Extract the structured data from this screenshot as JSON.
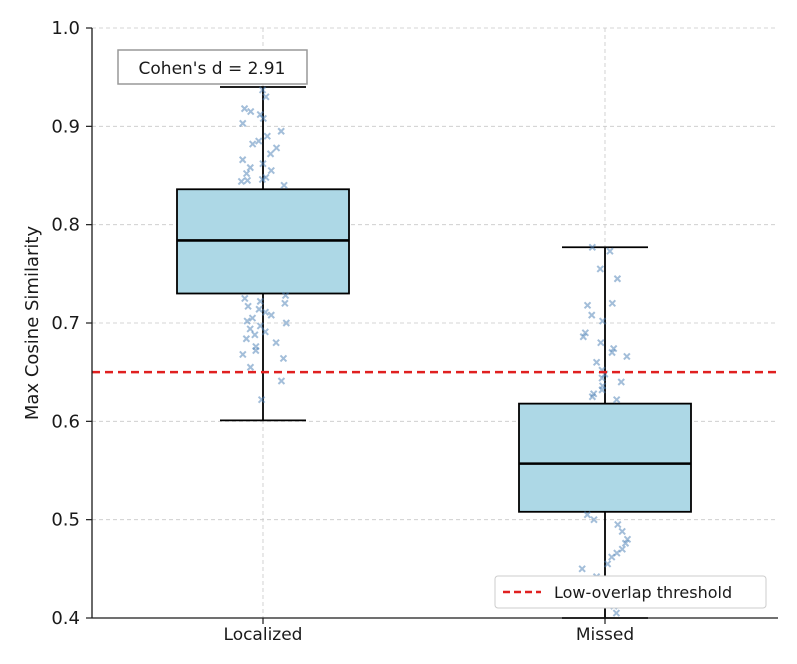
{
  "chart_data": {
    "type": "box",
    "title": "",
    "xlabel": "",
    "ylabel": "Max Cosine Similarity",
    "ylim": [
      0.4,
      1.0
    ],
    "yticks": [
      "0.4",
      "0.5",
      "0.6",
      "0.7",
      "0.8",
      "0.9",
      "1.0"
    ],
    "grid": true,
    "categories": [
      "Localized",
      "Missed"
    ],
    "boxes": [
      {
        "name": "Localized",
        "whisker_low": 0.601,
        "q1": 0.73,
        "median": 0.784,
        "q3": 0.836,
        "whisker_high": 0.94
      },
      {
        "name": "Missed",
        "whisker_low": 0.4,
        "q1": 0.508,
        "median": 0.557,
        "q3": 0.618,
        "whisker_high": 0.777
      }
    ],
    "jitter_points": {
      "Localized": [
        0.937,
        0.93,
        0.918,
        0.915,
        0.912,
        0.908,
        0.903,
        0.895,
        0.89,
        0.885,
        0.882,
        0.878,
        0.872,
        0.866,
        0.862,
        0.858,
        0.855,
        0.852,
        0.848,
        0.846,
        0.845,
        0.844,
        0.84,
        0.728,
        0.725,
        0.722,
        0.72,
        0.717,
        0.714,
        0.711,
        0.708,
        0.705,
        0.702,
        0.7,
        0.697,
        0.694,
        0.691,
        0.688,
        0.684,
        0.68,
        0.676,
        0.672,
        0.668,
        0.664,
        0.655,
        0.641,
        0.622
      ],
      "Missed": [
        0.777,
        0.773,
        0.755,
        0.745,
        0.72,
        0.718,
        0.708,
        0.702,
        0.69,
        0.686,
        0.68,
        0.674,
        0.67,
        0.666,
        0.66,
        0.652,
        0.648,
        0.644,
        0.64,
        0.636,
        0.632,
        0.628,
        0.625,
        0.622,
        0.505,
        0.5,
        0.495,
        0.488,
        0.48,
        0.476,
        0.47,
        0.466,
        0.462,
        0.455,
        0.45,
        0.442,
        0.436,
        0.428,
        0.42,
        0.412,
        0.405
      ]
    },
    "reference_line": {
      "value": 0.65,
      "label": "Low-overlap threshold",
      "color": "#e02020",
      "style": "dashed"
    },
    "annotation": {
      "text": "Cohen's d = 2.91",
      "location": "top-left"
    },
    "legend": {
      "location": "bottom-right",
      "entries": [
        "Low-overlap threshold"
      ]
    },
    "colors": {
      "box_fill": "#add8e6",
      "box_edge": "#000000",
      "points": "#4a7fb5",
      "grid": "#c8c8c8",
      "threshold": "#e02020"
    }
  }
}
